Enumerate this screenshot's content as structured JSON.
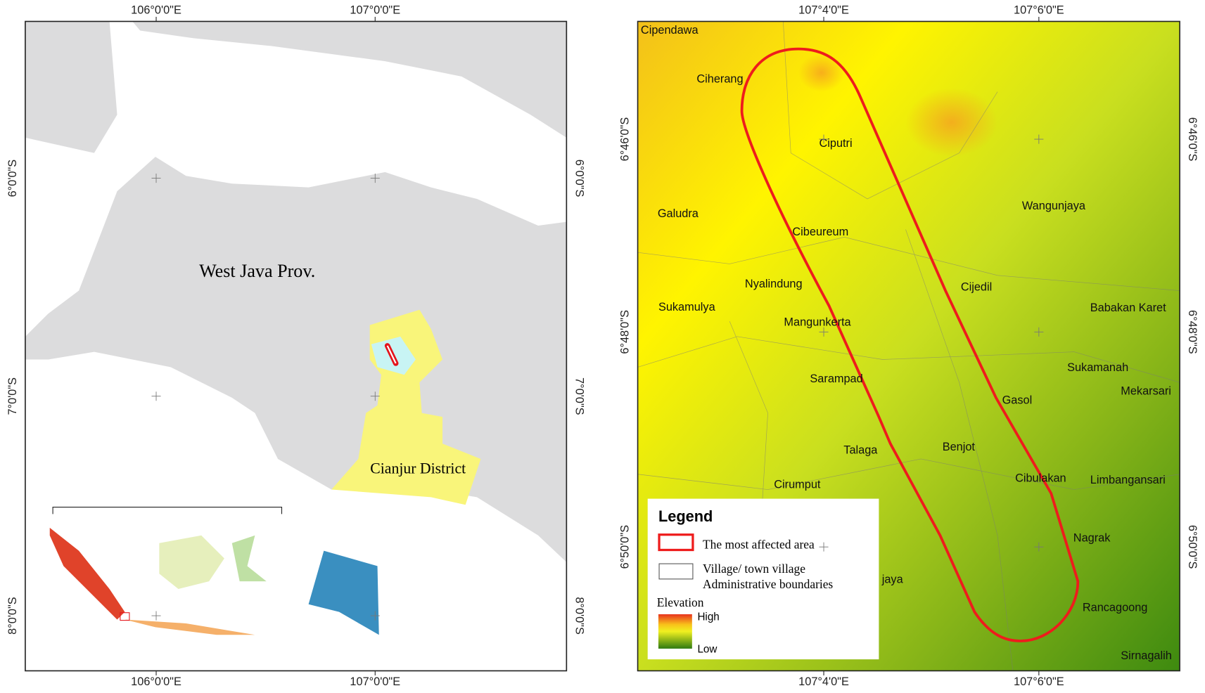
{
  "left_map": {
    "x_ticks": [
      "106°0'0\"E",
      "107°0'0\"E"
    ],
    "y_ticks": [
      "6°0'0\"S",
      "7°0'0\"S",
      "8°0'0\"S"
    ],
    "labels": [
      "West Java Prov.",
      "Cianjur District"
    ]
  },
  "right_map": {
    "x_ticks": [
      "107°4'0\"E",
      "107°6'0\"E"
    ],
    "y_ticks": [
      "6°46'0\"S",
      "6°48'0\"S",
      "6°50'0\"S"
    ],
    "villages": [
      "Cipendawa",
      "Ciherang",
      "Ciputri",
      "Galudra",
      "Wangunjaya",
      "Cibeureum",
      "Nyalindung",
      "Cijedil",
      "Sukamulya",
      "Babakan Karet",
      "Mangunkerta",
      "Sukamanah",
      "Sarampad",
      "Mekarsari",
      "Gasol",
      "Benjot",
      "Talaga",
      "Cibulakan",
      "Limbangansari",
      "Cirumput",
      "Nagrak",
      "jaya",
      "Rancagoong",
      "Sirnagalih"
    ]
  },
  "legend": {
    "title": "Legend",
    "affected": "The most affected area",
    "boundaries": [
      "Village/ town village",
      "Administrative boundaries"
    ],
    "elevation": "Elevation",
    "high": "High",
    "low": "Low"
  }
}
